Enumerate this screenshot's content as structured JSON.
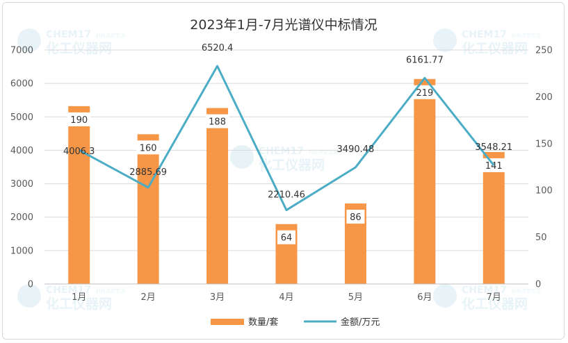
{
  "chart_data": {
    "type": "bar",
    "title": "2023年1月-7月光谱仪中标情况",
    "categories": [
      "1月",
      "2月",
      "3月",
      "4月",
      "5月",
      "6月",
      "7月"
    ],
    "series": [
      {
        "name": "数量/套",
        "type": "bar",
        "axis": "right",
        "values": [
          190,
          160,
          188,
          64,
          86,
          219,
          141
        ],
        "color": "#F79646"
      },
      {
        "name": "金额/万元",
        "type": "line",
        "axis": "left",
        "values": [
          4006.3,
          2885.69,
          6520.4,
          2210.46,
          3490.48,
          6161.77,
          3548.21
        ],
        "color": "#4BACC6"
      }
    ],
    "bar_labels": [
      "190",
      "160",
      "188",
      "64",
      "86",
      "219",
      "141"
    ],
    "line_labels": [
      "4006.3",
      "2885.69",
      "6520.4",
      "2210.46",
      "3490.48",
      "6161.77",
      "3548.21"
    ],
    "y_left": {
      "min": 0,
      "max": 7000,
      "ticks": [
        "0",
        "1000",
        "2000",
        "3000",
        "4000",
        "5000",
        "6000",
        "7000"
      ]
    },
    "y_right": {
      "min": 0,
      "max": 250,
      "ticks": [
        "0",
        "50",
        "100",
        "150",
        "200",
        "250"
      ]
    },
    "grid": true,
    "legend_position": "bottom"
  },
  "watermark": {
    "brand": "CHEM17",
    "name": "化工仪器网",
    "tagline": "科技改变生活"
  }
}
